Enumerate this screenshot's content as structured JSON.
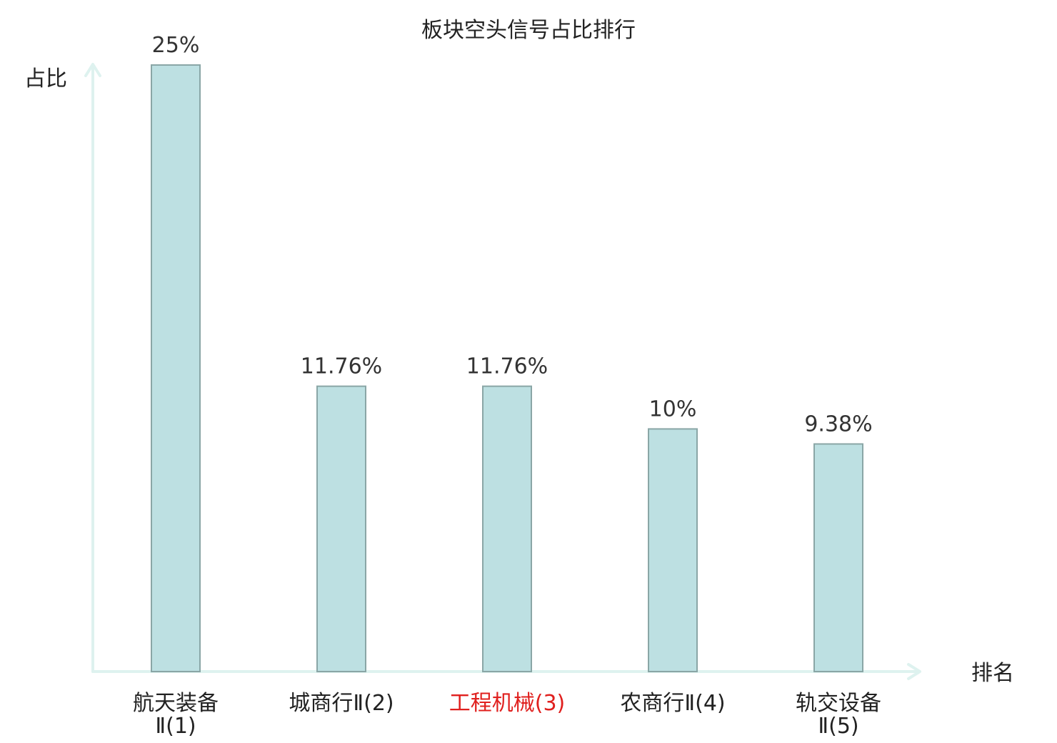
{
  "chart_data": {
    "type": "bar",
    "title": "板块空头信号占比排行",
    "xlabel": "排名",
    "ylabel": "占比",
    "categories": [
      {
        "line1": "航天装备",
        "line2": "Ⅱ(1)",
        "highlight": false
      },
      {
        "line1": "城商行Ⅱ(2)",
        "line2": "",
        "highlight": false
      },
      {
        "line1": "工程机械(3)",
        "line2": "",
        "highlight": true
      },
      {
        "line1": "农商行Ⅱ(4)",
        "line2": "",
        "highlight": false
      },
      {
        "line1": "轨交设备",
        "line2": "Ⅱ(5)",
        "highlight": false
      }
    ],
    "values": [
      25,
      11.76,
      11.76,
      10,
      9.38
    ],
    "value_labels": [
      "25%",
      "11.76%",
      "11.76%",
      "10%",
      "9.38%"
    ],
    "ylim": [
      0,
      25
    ],
    "grid": false,
    "legend": "none",
    "colors": {
      "bar_fill": "#bde0e2",
      "bar_stroke": "#8aa6a6",
      "axis": "#def2ef",
      "highlight_text": "#e0201e"
    }
  }
}
